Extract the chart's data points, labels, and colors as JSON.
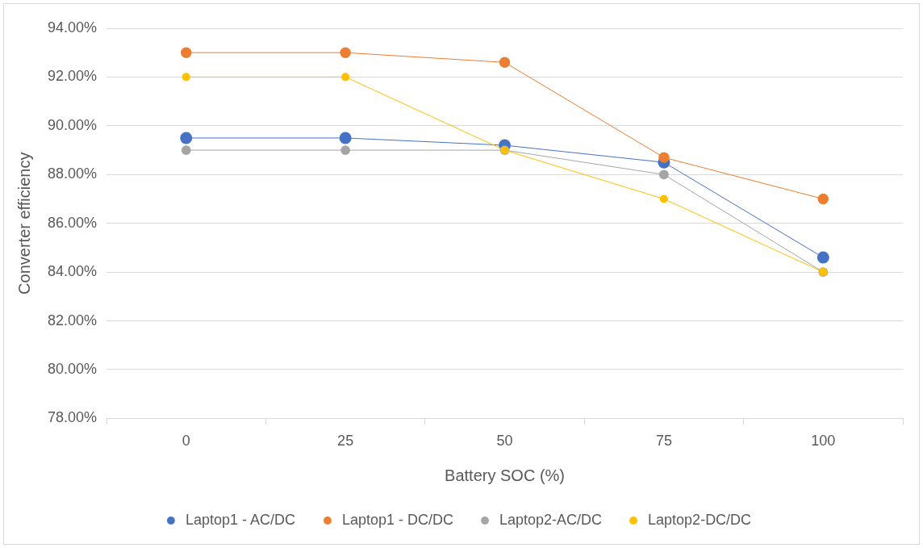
{
  "chart_data": {
    "type": "line",
    "xlabel": "Battery SOC (%)",
    "ylabel": "Converter efficiency",
    "categories": [
      "0",
      "25",
      "50",
      "75",
      "100"
    ],
    "series": [
      {
        "name": "Laptop1 - AC/DC",
        "color": "#4472c4",
        "values": [
          89.5,
          89.5,
          89.2,
          88.5,
          84.6
        ]
      },
      {
        "name": "Laptop1 - DC/DC",
        "color": "#ed7d31",
        "values": [
          93.0,
          93.0,
          92.6,
          88.7,
          87.0
        ]
      },
      {
        "name": "Laptop2-AC/DC",
        "color": "#a5a5a5",
        "values": [
          89.0,
          89.0,
          89.0,
          88.0,
          84.0
        ]
      },
      {
        "name": "Laptop2-DC/DC",
        "color": "#ffc000",
        "values": [
          92.0,
          92.0,
          89.0,
          87.0,
          84.0
        ]
      }
    ],
    "ylim": [
      78,
      94
    ],
    "yticks": [
      {
        "value": 78,
        "label": "78.00%"
      },
      {
        "value": 80,
        "label": "80.00%"
      },
      {
        "value": 82,
        "label": "82.00%"
      },
      {
        "value": 84,
        "label": "84.00%"
      },
      {
        "value": 86,
        "label": "86.00%"
      },
      {
        "value": 88,
        "label": "88.00%"
      },
      {
        "value": 90,
        "label": "90.00%"
      },
      {
        "value": 92,
        "label": "92.00%"
      },
      {
        "value": 94,
        "label": "94.00%"
      }
    ],
    "grid": "y",
    "legend": "bottom",
    "marker": "circle",
    "line_style": "solid"
  }
}
